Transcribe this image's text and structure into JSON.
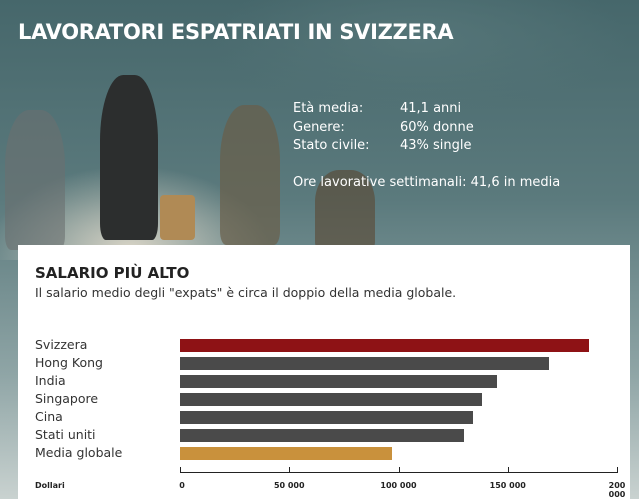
{
  "header": {
    "title": "LAVORATORI ESPATRIATI IN SVIZZERA"
  },
  "stats": [
    {
      "label": "Età media:",
      "value": "41,1 anni"
    },
    {
      "label": "Genere:",
      "value": "60% donne"
    },
    {
      "label": "Stato civile:",
      "value": "43% single"
    }
  ],
  "hours": "Ore lavorative settimanali: 41,6 in media",
  "chart_data": {
    "type": "bar",
    "orientation": "horizontal",
    "title": "SALARIO PIÙ ALTO",
    "subtitle": "Il salario medio degli \"expats\" è circa il doppio della media globale.",
    "xlabel": "Dollari",
    "categories": [
      "Svizzera",
      "Hong Kong",
      "India",
      "Singapore",
      "Cina",
      "Stati uniti",
      "Media globale"
    ],
    "values": [
      187000,
      169000,
      145000,
      138000,
      134000,
      130000,
      97000
    ],
    "colors": [
      "#8e1215",
      "#4a4a4a",
      "#4a4a4a",
      "#4a4a4a",
      "#4a4a4a",
      "#4a4a4a",
      "#c9913c"
    ],
    "xlim": [
      0,
      200000
    ],
    "xticks": [
      0,
      50000,
      100000,
      150000,
      200000
    ],
    "xtick_labels": [
      "0",
      "50 000",
      "100 000",
      "150 000",
      "200 000"
    ],
    "grid": false
  }
}
